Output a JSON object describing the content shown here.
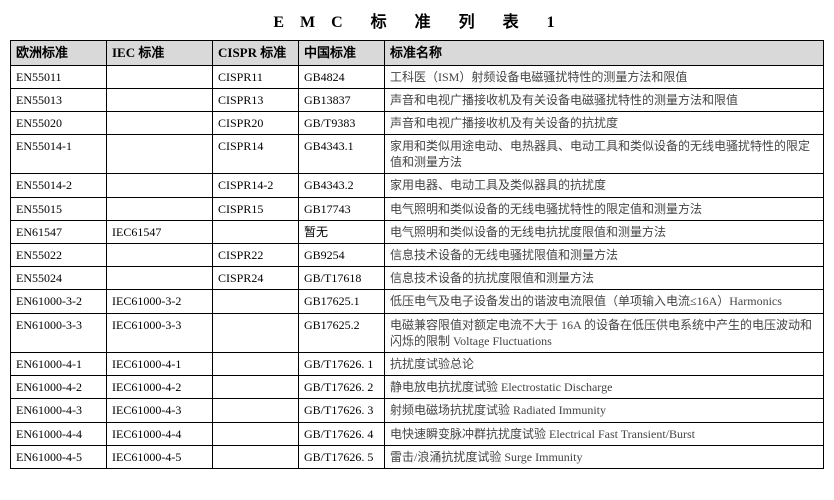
{
  "title": "E M C　标　准　列　表　1",
  "columns": [
    "欧洲标准",
    "IEC 标准",
    "CISPR 标准",
    "中国标准",
    "标准名称"
  ],
  "rows": [
    [
      "EN55011",
      "",
      "CISPR11",
      "GB4824",
      "工科医（ISM）射频设备电磁骚扰特性的测量方法和限值"
    ],
    [
      "EN55013",
      "",
      "CISPR13",
      "GB13837",
      "声音和电视广播接收机及有关设备电磁骚扰特性的测量方法和限值"
    ],
    [
      "EN55020",
      "",
      "CISPR20",
      "GB/T9383",
      "声音和电视广播接收机及有关设备的抗扰度"
    ],
    [
      "EN55014-1",
      "",
      "CISPR14",
      "GB4343.1",
      "家用和类似用途电动、电热器具、电动工具和类似设备的无线电骚扰特性的限定值和测量方法"
    ],
    [
      "EN55014-2",
      "",
      "CISPR14-2",
      "GB4343.2",
      "家用电器、电动工具及类似器具的抗扰度"
    ],
    [
      "EN55015",
      "",
      "CISPR15",
      "GB17743",
      "电气照明和类似设备的无线电骚扰特性的限定值和测量方法"
    ],
    [
      "EN61547",
      "IEC61547",
      "",
      "暂无",
      "电气照明和类似设备的无线电抗扰度限值和测量方法"
    ],
    [
      "EN55022",
      "",
      "CISPR22",
      "GB9254",
      "信息技术设备的无线电骚扰限值和测量方法"
    ],
    [
      "EN55024",
      "",
      "CISPR24",
      "GB/T17618",
      "信息技术设备的抗扰度限值和测量方法"
    ],
    [
      "EN61000-3-2",
      "IEC61000-3-2",
      "",
      "GB17625.1",
      "低压电气及电子设备发出的谐波电流限值（单项输入电流≤16A）Harmonics"
    ],
    [
      "EN61000-3-3",
      "IEC61000-3-3",
      "",
      "GB17625.2",
      "电磁兼容限值对额定电流不大于 16A 的设备在低压供电系统中产生的电压波动和闪烁的限制  Voltage Fluctuations"
    ],
    [
      "EN61000-4-1",
      "IEC61000-4-1",
      "",
      "GB/T17626. 1",
      "抗扰度试验总论"
    ],
    [
      "EN61000-4-2",
      "IEC61000-4-2",
      "",
      "GB/T17626. 2",
      "静电放电抗扰度试验  Electrostatic Discharge"
    ],
    [
      "EN61000-4-3",
      "IEC61000-4-3",
      "",
      "GB/T17626. 3",
      "射频电磁场抗扰度试验  Radiated Immunity"
    ],
    [
      "EN61000-4-4",
      "IEC61000-4-4",
      "",
      "GB/T17626. 4",
      "电快速瞬变脉冲群抗扰度试验  Electrical Fast Transient/Burst"
    ],
    [
      "EN61000-4-5",
      "IEC61000-4-5",
      "",
      "GB/T17626. 5",
      "雷击/浪涌抗扰度试验  Surge Immunity"
    ]
  ]
}
